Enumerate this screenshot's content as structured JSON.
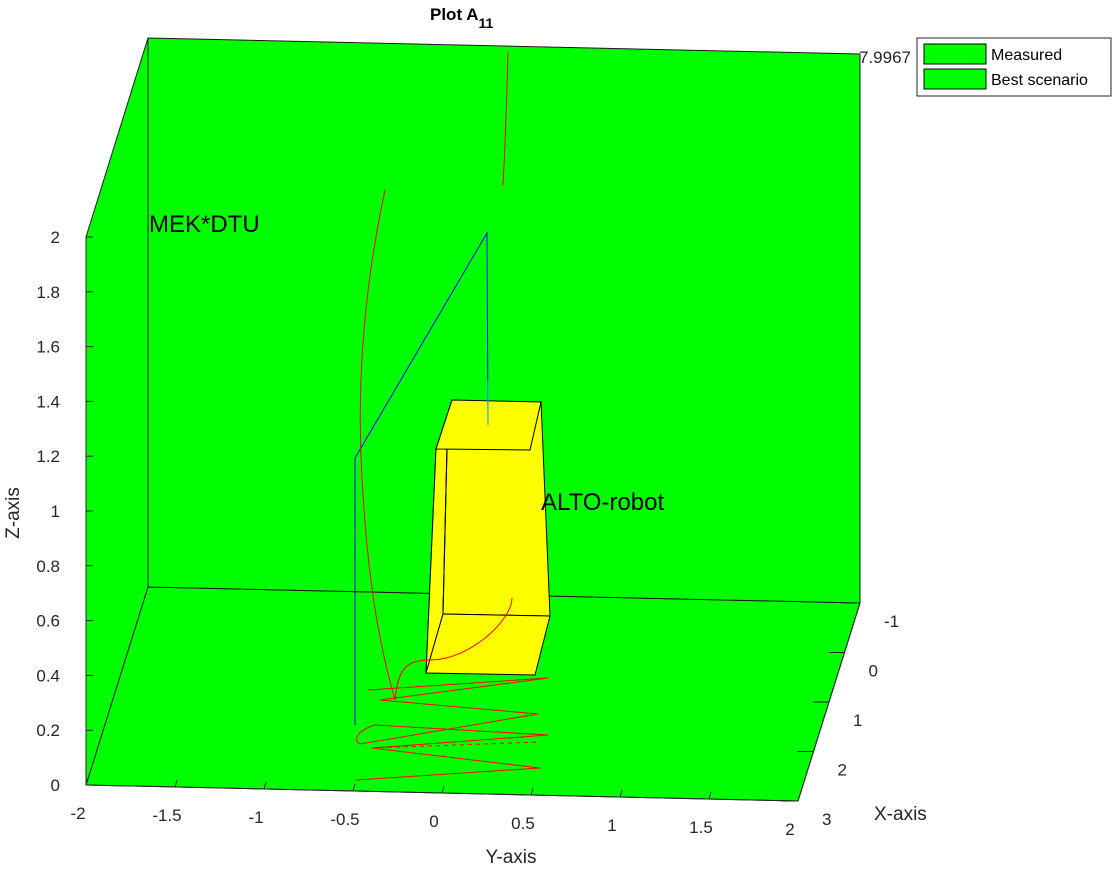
{
  "chart_data": {
    "type": "3d-scene",
    "title": "Plot A",
    "title_subscript": "11",
    "xlabel": "X-axis",
    "ylabel": "Y-axis",
    "zlabel": "Z-axis",
    "x_ticks": [
      "-1",
      "0",
      "1",
      "2",
      "3"
    ],
    "y_ticks": [
      "-2",
      "-1.5",
      "-1",
      "-0.5",
      "0",
      "0.5",
      "1",
      "1.5",
      "2"
    ],
    "z_ticks": [
      "0",
      "0.2",
      "0.4",
      "0.6",
      "0.8",
      "1",
      "1.2",
      "1.4",
      "1.6",
      "1.8",
      "2"
    ],
    "xlim": [
      -1,
      3
    ],
    "ylim": [
      -2,
      2
    ],
    "zlim": [
      0,
      2
    ],
    "corner_value": "7.9967",
    "annotations": [
      "MEK*DTU",
      "ALTO-robot"
    ],
    "legend": {
      "placement": "top-right",
      "entries": [
        {
          "name": "Measured",
          "color": "#00ff00"
        },
        {
          "name": "Best scenario",
          "color": "#00ff00"
        }
      ]
    },
    "colors": {
      "walls": "#00ff00",
      "robot": "#ffff00",
      "measured_path": "#ff0000",
      "arm": "#0000ff",
      "arm_tip": "#00aaff"
    }
  }
}
